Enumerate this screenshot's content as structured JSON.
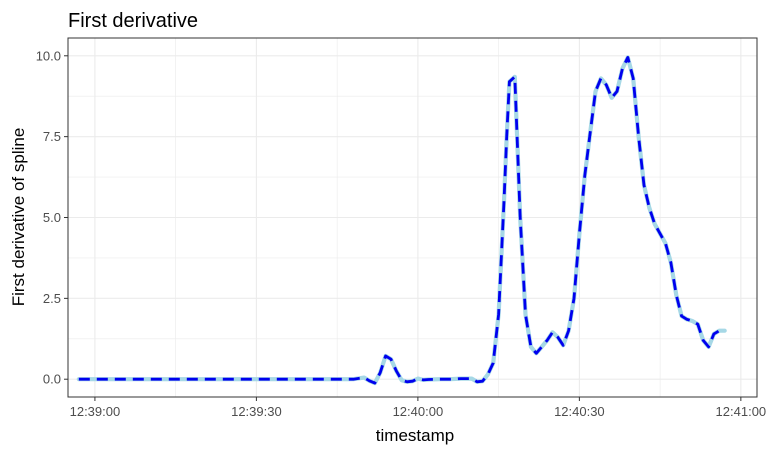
{
  "chart_data": {
    "type": "line",
    "title": "First derivative",
    "xlabel": "timestamp",
    "ylabel": "First derivative of spline",
    "x_ticks": [
      "12:39:00",
      "12:39:30",
      "12:40:00",
      "12:40:30",
      "12:41:00"
    ],
    "x_tick_seconds": [
      0,
      30,
      60,
      90,
      120
    ],
    "y_ticks": [
      "0.0",
      "2.5",
      "5.0",
      "7.5",
      "10.0"
    ],
    "y_tick_values": [
      0,
      2.5,
      5.0,
      7.5,
      10.0
    ],
    "xlim_seconds": [
      -5,
      123
    ],
    "ylim": [
      -0.55,
      10.55
    ],
    "grid": true,
    "legend": "none",
    "colors": {
      "solid_line": "#a6d8e6",
      "dashed_line": "#0000ee",
      "grid": "#ebebeb",
      "panel_border": "#333333"
    },
    "series": [
      {
        "style": "solid",
        "x_seconds": [
          -3,
          0,
          10,
          20,
          30,
          40,
          48,
          50,
          51,
          52,
          53,
          54,
          55,
          56,
          57,
          58,
          59,
          60,
          61,
          62,
          64,
          66,
          68,
          70,
          71,
          72,
          73,
          74,
          75,
          76,
          76.5,
          77,
          78,
          79,
          80,
          81,
          82,
          83,
          84,
          85,
          86,
          87,
          88,
          89,
          90,
          91,
          92,
          93,
          94,
          95,
          96,
          97,
          98,
          99,
          100,
          101,
          102,
          103,
          104,
          105,
          106,
          107,
          108,
          109,
          110,
          111,
          112,
          113,
          114,
          115,
          116,
          117
        ],
        "values": [
          0.0,
          0.0,
          0.0,
          0.0,
          0.0,
          0.0,
          0.0,
          0.05,
          -0.05,
          -0.12,
          0.2,
          0.72,
          0.62,
          0.25,
          -0.03,
          -0.08,
          -0.06,
          0.02,
          -0.02,
          -0.01,
          0.0,
          0.0,
          0.02,
          0.02,
          -0.08,
          -0.06,
          0.15,
          0.5,
          2.0,
          5.5,
          7.5,
          9.2,
          9.35,
          5.0,
          2.0,
          1.0,
          0.8,
          1.0,
          1.2,
          1.45,
          1.3,
          1.05,
          1.5,
          2.5,
          4.5,
          6.3,
          7.6,
          8.9,
          9.3,
          9.1,
          8.7,
          8.9,
          9.6,
          9.95,
          9.3,
          7.5,
          6.0,
          5.3,
          4.8,
          4.5,
          4.2,
          3.6,
          2.6,
          1.95,
          1.85,
          1.8,
          1.7,
          1.2,
          1.0,
          1.4,
          1.5,
          1.5
        ]
      },
      {
        "style": "dashed",
        "x_seconds": [
          -3,
          0,
          10,
          20,
          30,
          40,
          48,
          50,
          51,
          52,
          53,
          54,
          55,
          56,
          57,
          58,
          59,
          60,
          61,
          62,
          64,
          66,
          68,
          70,
          71,
          72,
          73,
          74,
          75,
          76,
          76.5,
          77,
          78,
          79,
          80,
          81,
          82,
          83,
          84,
          85,
          86,
          87,
          88,
          89,
          90,
          91,
          92,
          93,
          94,
          95,
          96,
          97,
          98,
          99,
          100,
          101,
          102,
          103,
          104,
          105,
          106,
          107,
          108,
          109,
          110,
          111,
          112,
          113,
          114,
          115,
          116,
          117
        ],
        "values": [
          0.0,
          0.0,
          0.0,
          0.0,
          0.0,
          0.0,
          0.0,
          0.05,
          -0.05,
          -0.12,
          0.2,
          0.72,
          0.62,
          0.25,
          -0.03,
          -0.08,
          -0.06,
          0.02,
          -0.02,
          -0.01,
          0.0,
          0.0,
          0.02,
          0.02,
          -0.08,
          -0.06,
          0.15,
          0.5,
          2.0,
          5.5,
          7.5,
          9.2,
          9.35,
          5.0,
          2.0,
          1.0,
          0.8,
          1.0,
          1.2,
          1.45,
          1.3,
          1.05,
          1.5,
          2.5,
          4.5,
          6.3,
          7.6,
          8.9,
          9.3,
          9.1,
          8.7,
          8.9,
          9.6,
          9.95,
          9.3,
          7.5,
          6.0,
          5.3,
          4.8,
          4.5,
          4.2,
          3.6,
          2.6,
          1.95,
          1.85,
          1.8,
          1.7,
          1.2,
          1.0,
          1.4,
          1.5,
          1.5
        ]
      }
    ]
  }
}
